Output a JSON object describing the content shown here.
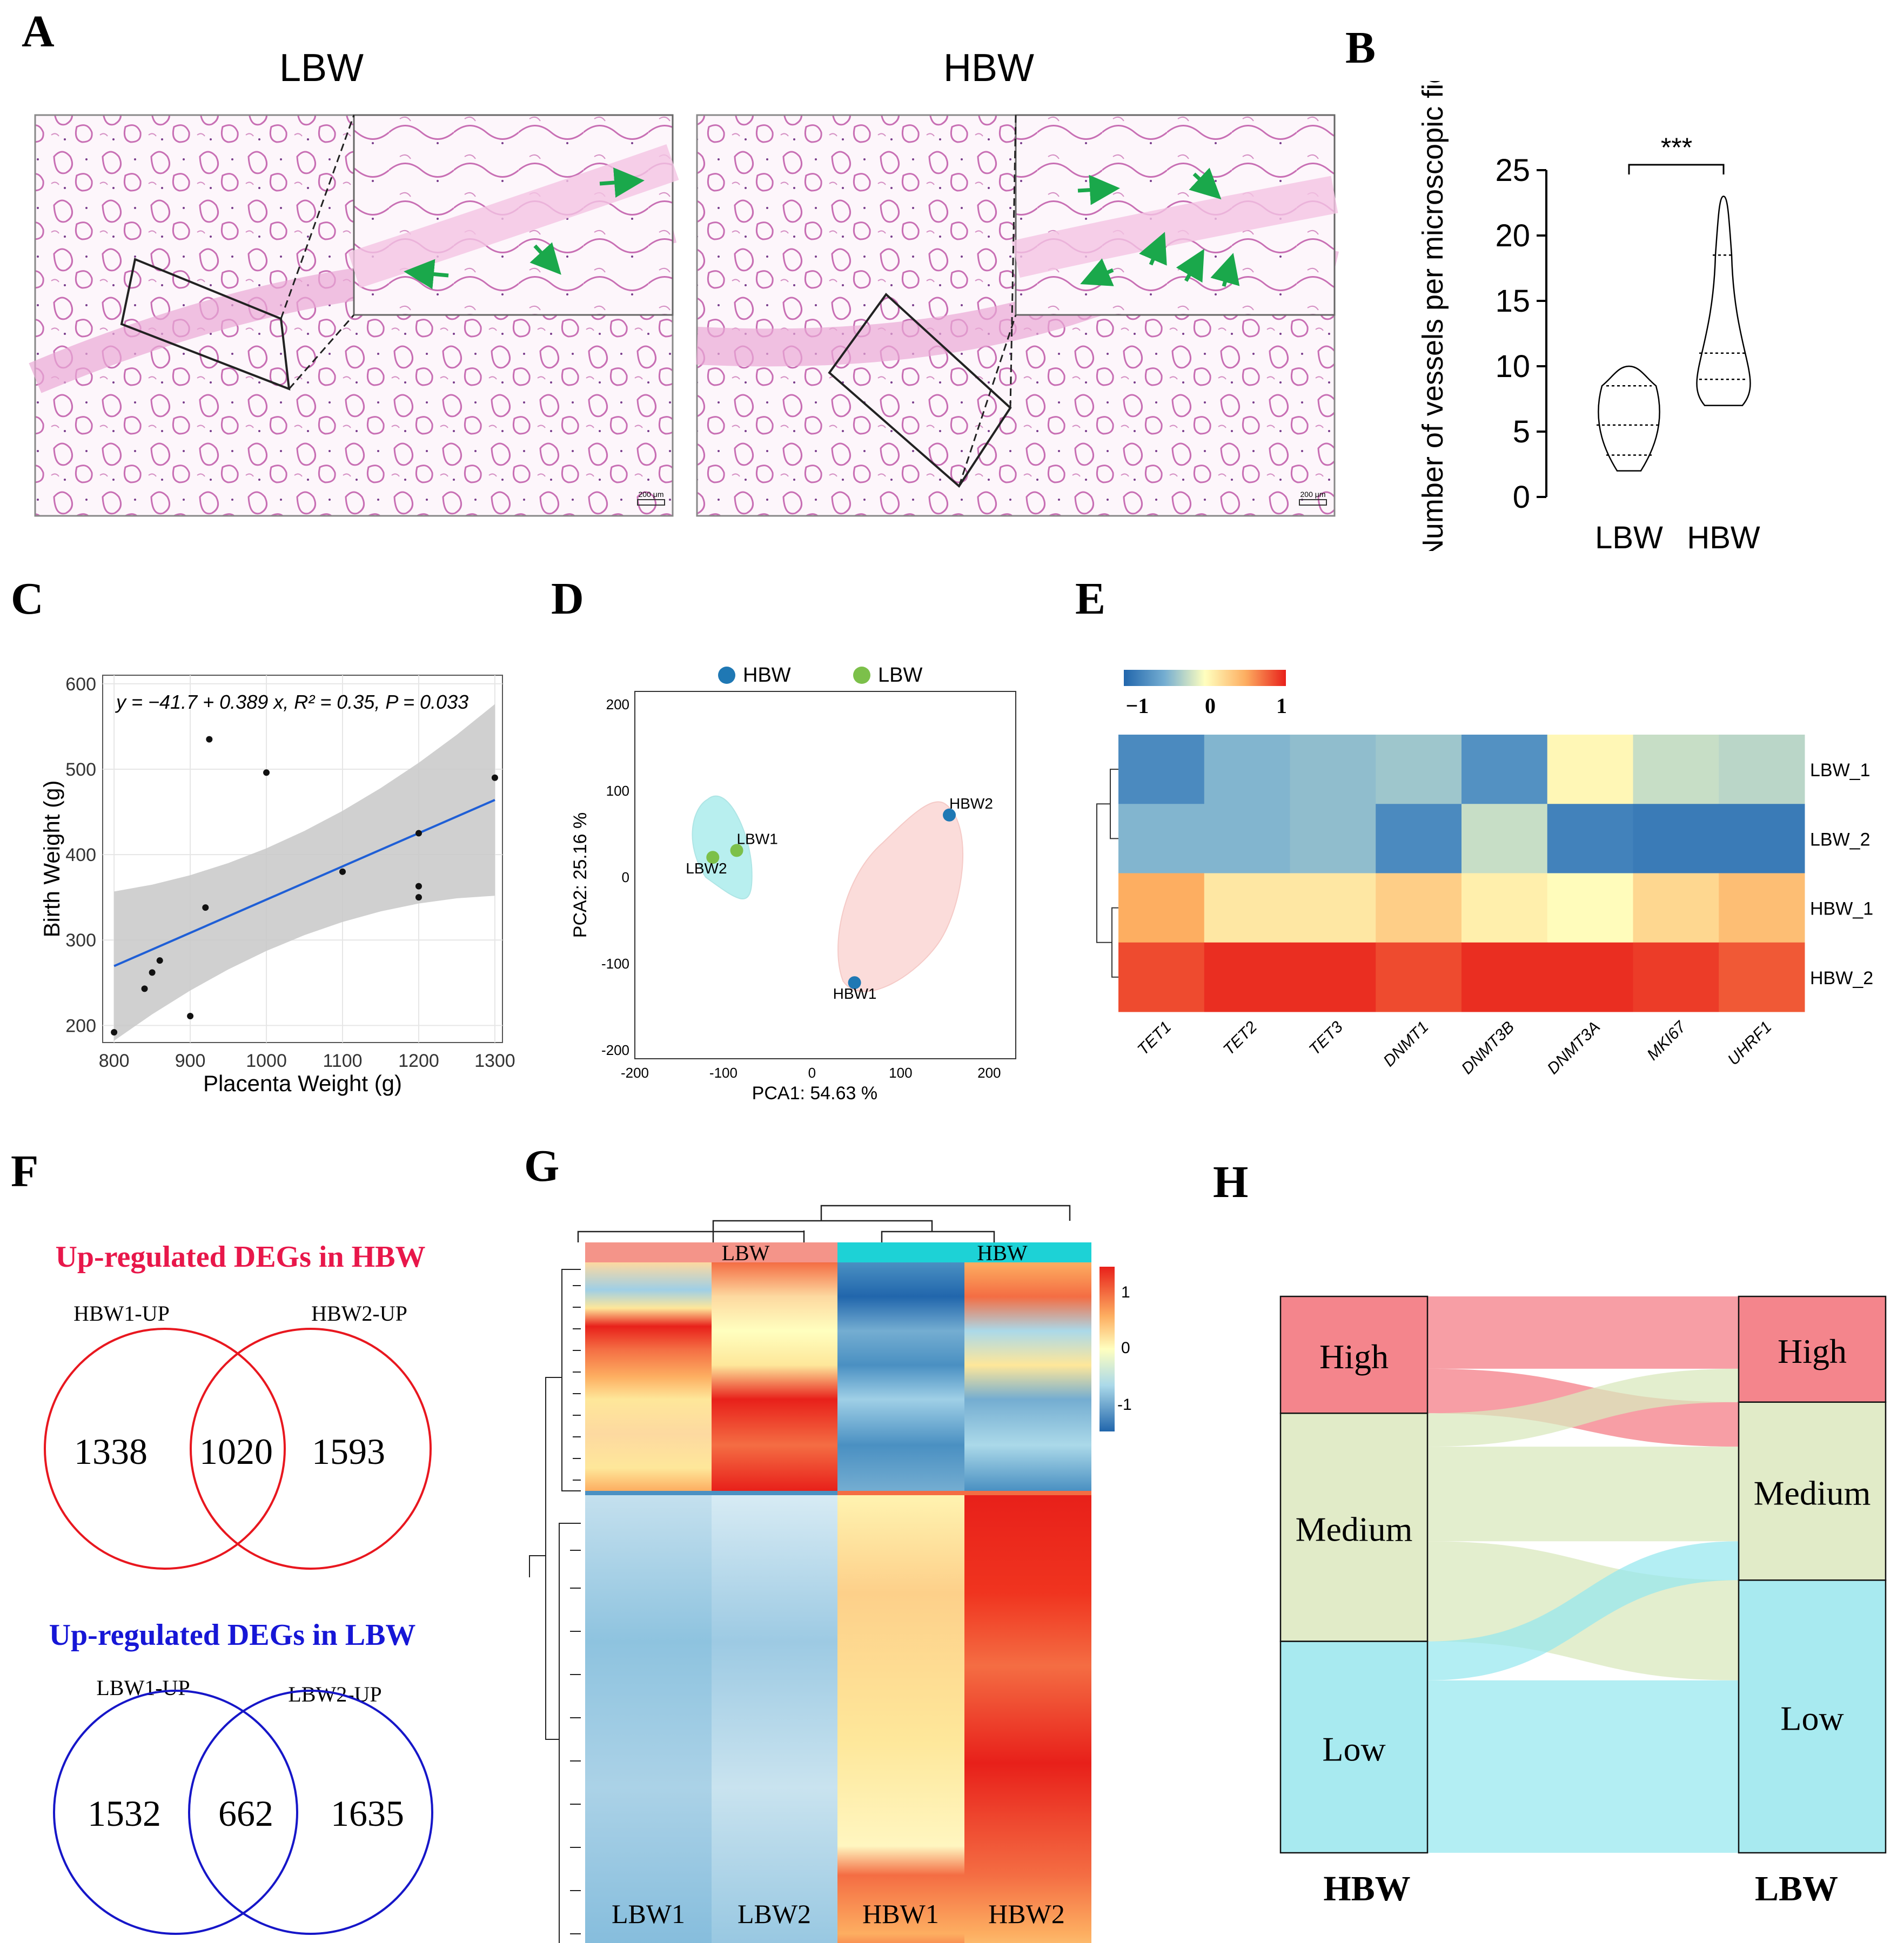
{
  "panels": {
    "A": {
      "letter": "A",
      "lbw_title": "LBW",
      "hbw_title": "HBW",
      "scale_bar_lbw": "200 μm",
      "scale_bar_hbw": "200 μm"
    },
    "B": {
      "letter": "B",
      "sig": "***"
    },
    "C": {
      "letter": "C"
    },
    "D": {
      "letter": "D"
    },
    "E": {
      "letter": "E"
    },
    "F": {
      "letter": "F",
      "hbw_title": "Up-regulated DEGs in HBW",
      "lbw_title": "Up-regulated DEGs in LBW",
      "hbw_venn": {
        "left_label": "HBW1-UP",
        "right_label": "HBW2-UP",
        "left": "1338",
        "overlap": "1020",
        "right": "1593",
        "color": "#e8171f"
      },
      "lbw_venn": {
        "left_label": "LBW1-UP",
        "right_label": "LBW2-UP",
        "left": "1532",
        "overlap": "662",
        "right": "1635",
        "color": "#1616c8"
      }
    },
    "G": {
      "letter": "G",
      "group_labels": [
        "LBW",
        "HBW"
      ],
      "columns": [
        "LBW1",
        "LBW2",
        "HBW1",
        "HBW2"
      ],
      "legend_ticks": [
        "1",
        "0",
        "-1"
      ]
    },
    "H": {
      "letter": "H",
      "left_axis": "HBW",
      "right_axis": "LBW",
      "left_nodes": [
        "High",
        "Medium",
        "Low"
      ],
      "right_nodes": [
        "High",
        "Medium",
        "Low"
      ]
    }
  },
  "chart_data": [
    {
      "id": "B",
      "type": "violin",
      "categories": [
        "LBW",
        "HBW"
      ],
      "ylabel": "Number of vessels per microscopic field",
      "ylim": [
        0,
        25
      ],
      "yticks": [
        0,
        5,
        10,
        15,
        20,
        25
      ],
      "series": [
        {
          "name": "LBW",
          "min": 2,
          "max": 10,
          "q1": 3.2,
          "median": 5.5,
          "q3": 8.5
        },
        {
          "name": "HBW",
          "min": 7,
          "max": 23,
          "q1": 9,
          "median": 11,
          "q3": 18.5
        }
      ],
      "annotation": "***"
    },
    {
      "id": "C",
      "type": "scatter",
      "xlabel": "Placenta Weight (g)",
      "ylabel": "Birth Weight (g)",
      "xlim": [
        785,
        1310
      ],
      "ylim": [
        180,
        610
      ],
      "xticks": [
        800,
        900,
        1000,
        1100,
        1200,
        1300
      ],
      "yticks": [
        200,
        300,
        400,
        500,
        600
      ],
      "points": [
        [
          800,
          192
        ],
        [
          840,
          243
        ],
        [
          850,
          262
        ],
        [
          860,
          276
        ],
        [
          900,
          211
        ],
        [
          920,
          338
        ],
        [
          925,
          535
        ],
        [
          1000,
          496
        ],
        [
          1100,
          380
        ],
        [
          1200,
          425
        ],
        [
          1200,
          363
        ],
        [
          1200,
          350
        ],
        [
          1300,
          490
        ]
      ],
      "fit": {
        "intercept": -41.7,
        "slope": 0.389
      },
      "equation": "y = −41.7 + 0.389 x, R² = 0.35, P = 0.033"
    },
    {
      "id": "D",
      "type": "scatter",
      "xlabel": "PCA1: 54.63 %",
      "ylabel": "PCA2: 25.16 %",
      "xlim": [
        -200,
        230
      ],
      "ylim": [
        -210,
        215
      ],
      "xticks": [
        -200,
        -100,
        0,
        100,
        200
      ],
      "yticks": [
        -200,
        -100,
        0,
        100,
        200
      ],
      "legend": [
        {
          "name": "HBW",
          "color": "#1f78b4"
        },
        {
          "name": "LBW",
          "color": "#7cc04a"
        }
      ],
      "points": [
        {
          "label": "LBW1",
          "group": "LBW",
          "x": -85,
          "y": 31
        },
        {
          "label": "LBW2",
          "group": "LBW",
          "x": -112,
          "y": 23
        },
        {
          "label": "HBW1",
          "group": "HBW",
          "x": 48,
          "y": -122
        },
        {
          "label": "HBW2",
          "group": "HBW",
          "x": 155,
          "y": 72
        }
      ]
    },
    {
      "id": "E",
      "type": "heatmap",
      "rows": [
        "LBW_1",
        "LBW_2",
        "HBW_1",
        "HBW_2"
      ],
      "columns": [
        "TET1",
        "TET2",
        "TET3",
        "DNMT1",
        "DNMT3B",
        "DNMT3A",
        "MKI67",
        "UHRF1"
      ],
      "scale": [
        -1,
        0,
        1
      ],
      "scale_labels": [
        "−1",
        "0",
        "1"
      ],
      "values": [
        [
          -0.75,
          -0.45,
          -0.4,
          -0.35,
          -0.7,
          0.05,
          -0.2,
          -0.25
        ],
        [
          -0.45,
          -0.45,
          -0.4,
          -0.75,
          -0.2,
          -0.8,
          -0.85,
          -0.85
        ],
        [
          0.5,
          0.15,
          0.15,
          0.3,
          0.1,
          0.02,
          0.25,
          0.4
        ],
        [
          0.85,
          0.95,
          0.95,
          0.85,
          0.95,
          0.95,
          0.9,
          0.8
        ]
      ]
    },
    {
      "id": "H",
      "type": "sankey",
      "left": [
        "High",
        "Medium",
        "Low"
      ],
      "right": [
        "High",
        "Medium",
        "Low"
      ],
      "left_shares": [
        0.21,
        0.41,
        0.38
      ],
      "right_shares": [
        0.19,
        0.32,
        0.49
      ],
      "flows": [
        {
          "from": "High",
          "to": "High",
          "share": 0.13
        },
        {
          "from": "High",
          "to": "Medium",
          "share": 0.08
        },
        {
          "from": "Medium",
          "to": "High",
          "share": 0.06
        },
        {
          "from": "Medium",
          "to": "Medium",
          "share": 0.17
        },
        {
          "from": "Medium",
          "to": "Low",
          "share": 0.18
        },
        {
          "from": "Low",
          "to": "Medium",
          "share": 0.07
        },
        {
          "from": "Low",
          "to": "Low",
          "share": 0.31
        }
      ]
    }
  ]
}
